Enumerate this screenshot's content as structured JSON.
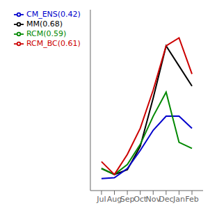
{
  "chart_data": {
    "type": "line",
    "categories": [
      "Jul",
      "Aug",
      "Sep",
      "Oct",
      "Nov",
      "Dec",
      "Jan",
      "Feb"
    ],
    "series": [
      {
        "name": "MM(0.68)",
        "color": "#000000",
        "values": [
          0.55,
          0.4,
          0.52,
          1.1,
          2.3,
          3.6,
          3.1,
          2.6
        ]
      },
      {
        "name": "CM_ENS(0.42)",
        "color": "#0000cc",
        "values": [
          0.3,
          0.32,
          0.55,
          1.0,
          1.5,
          1.85,
          1.85,
          1.55
        ]
      },
      {
        "name": "RCM(0.59)",
        "color": "#008800",
        "values": [
          0.55,
          0.4,
          0.65,
          1.15,
          1.85,
          2.45,
          1.2,
          1.05
        ]
      },
      {
        "name": "RCM_BC(0.61)",
        "color": "#cc0000",
        "values": [
          0.72,
          0.4,
          0.9,
          1.55,
          2.5,
          3.6,
          3.8,
          2.9
        ]
      }
    ],
    "ylim": [
      0,
      4.5
    ],
    "tick_labels": "x",
    "grid": false,
    "legend": "top"
  }
}
